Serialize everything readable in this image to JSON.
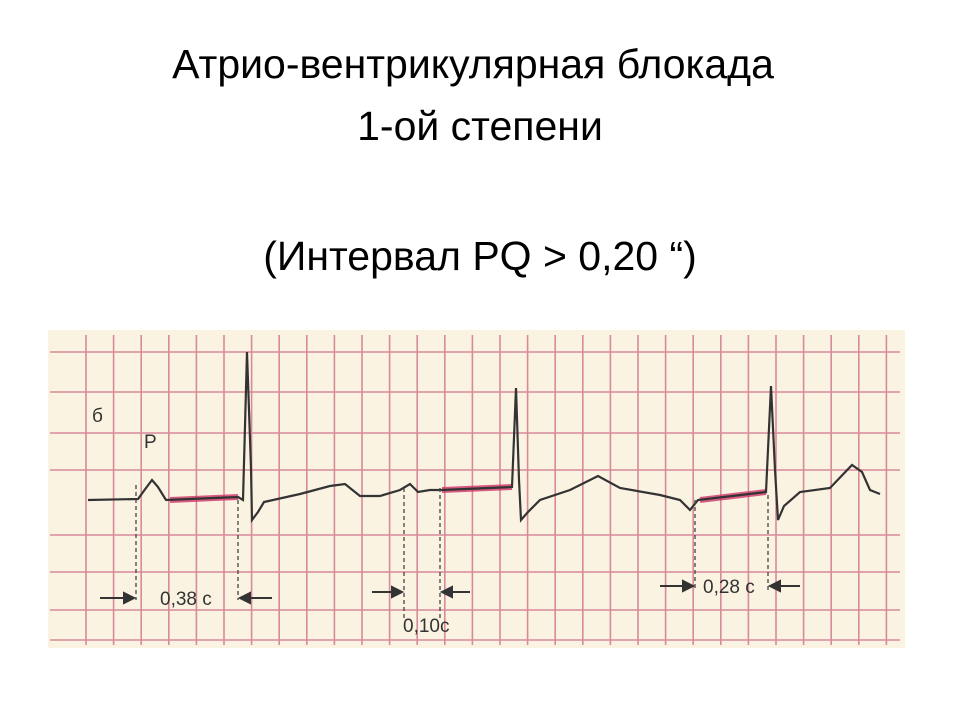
{
  "header": {
    "title_line1": "Атрио-вентрикулярная блокада",
    "title_line2": "1-ой степени",
    "subtitle": "(Интервал PQ > 0,20 “)"
  },
  "figure": {
    "lead_label": "б",
    "wave_label": "P",
    "intervals": [
      "0,38 с",
      "0,10с",
      "0,28 с"
    ]
  }
}
